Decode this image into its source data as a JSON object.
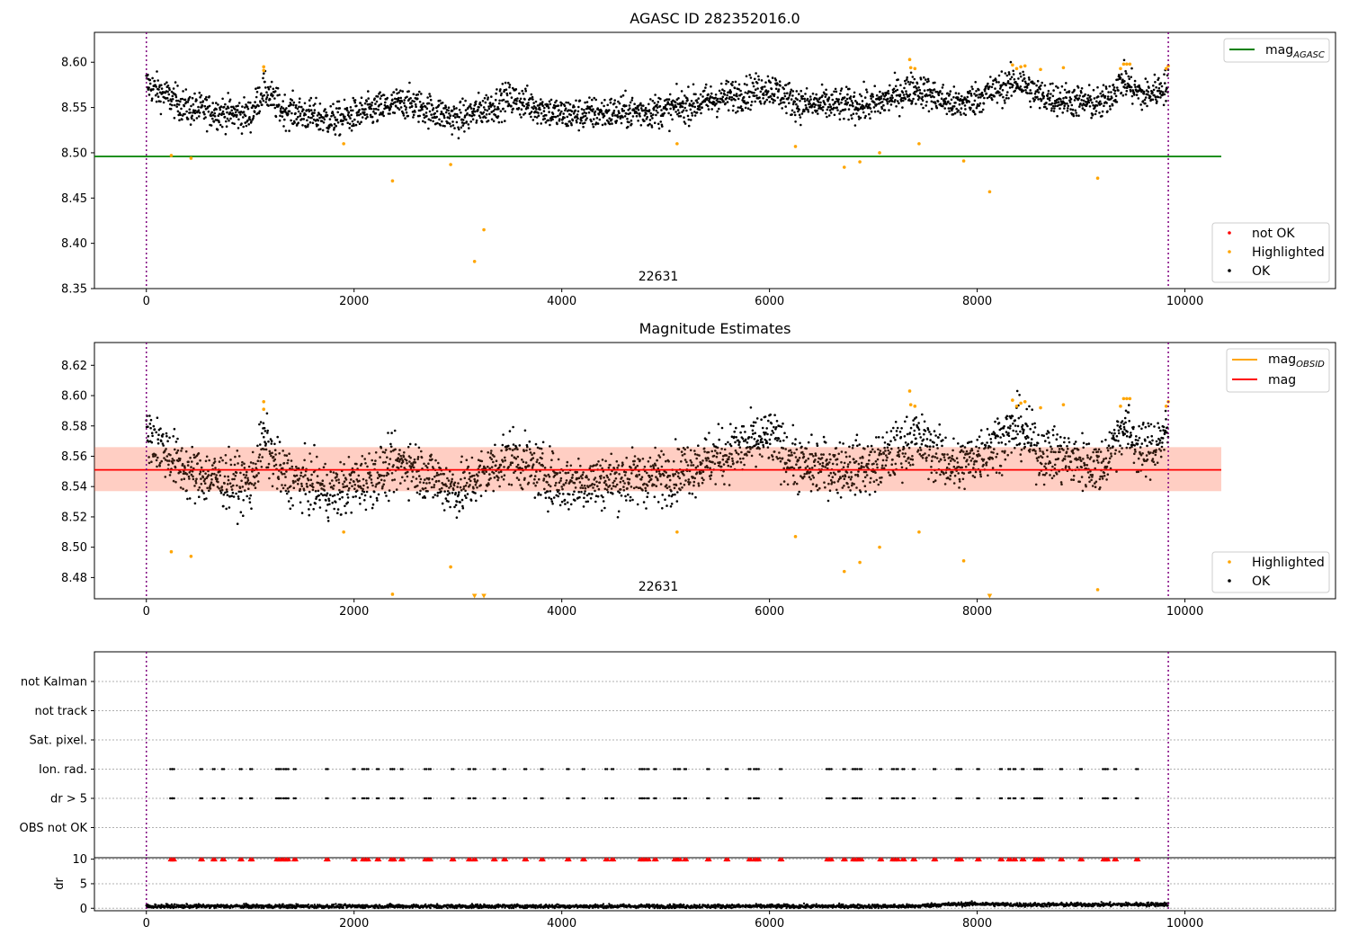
{
  "chart_data": [
    {
      "type": "scatter",
      "title": "AGASC ID 282352016.0",
      "xlabel": "",
      "ylabel": "",
      "xlim": [
        -500,
        11450
      ],
      "ylim": [
        8.35,
        8.633
      ],
      "xticks": [
        0,
        2000,
        4000,
        6000,
        8000,
        10000
      ],
      "yticks": [
        8.35,
        8.4,
        8.45,
        8.5,
        8.55,
        8.6
      ],
      "ytick_labels": [
        "8.35",
        "8.40",
        "8.45",
        "8.50",
        "8.55",
        "8.60"
      ],
      "vlines": [
        0,
        9840
      ],
      "annotation": {
        "x": 4950,
        "y": 8.35,
        "text": "22631"
      },
      "hlines": [
        {
          "name": "mag_AGASC",
          "y": 8.496,
          "x": [
            -500,
            10350
          ],
          "color": "#008000"
        }
      ],
      "legend_lines": [
        {
          "label": "mag",
          "sub": "AGASC",
          "color": "#008000"
        }
      ],
      "legend_points": [
        {
          "label": "not OK",
          "color": "#ff0000"
        },
        {
          "label": "Highlighted",
          "color": "#ffa500"
        },
        {
          "label": "OK",
          "color": "#000000"
        }
      ],
      "series": [
        {
          "name": "OK",
          "color": "#000000",
          "baseline": [
            [
              0,
              8.576
            ],
            [
              400,
              8.549
            ],
            [
              1000,
              8.541
            ],
            [
              1130,
              8.57
            ],
            [
              1300,
              8.548
            ],
            [
              1800,
              8.536
            ],
            [
              2500,
              8.556
            ],
            [
              3000,
              8.537
            ],
            [
              3500,
              8.56
            ],
            [
              4000,
              8.542
            ],
            [
              5000,
              8.547
            ],
            [
              6000,
              8.572
            ],
            [
              6300,
              8.553
            ],
            [
              7000,
              8.553
            ],
            [
              7400,
              8.572
            ],
            [
              7800,
              8.552
            ],
            [
              8400,
              8.579
            ],
            [
              8600,
              8.563
            ],
            [
              9200,
              8.553
            ],
            [
              9400,
              8.58
            ],
            [
              9600,
              8.562
            ],
            [
              9840,
              8.575
            ]
          ],
          "spread": 0.009
        },
        {
          "name": "Highlighted",
          "color": "#ffa500",
          "points": [
            [
              240,
              8.497
            ],
            [
              430,
              8.494
            ],
            [
              1130,
              8.591
            ],
            [
              1130,
              8.595
            ],
            [
              1900,
              8.51
            ],
            [
              2370,
              8.469
            ],
            [
              2930,
              8.487
            ],
            [
              3160,
              8.38
            ],
            [
              3250,
              8.415
            ],
            [
              5110,
              8.51
            ],
            [
              6250,
              8.507
            ],
            [
              6720,
              8.484
            ],
            [
              6870,
              8.49
            ],
            [
              7060,
              8.5
            ],
            [
              7350,
              8.603
            ],
            [
              7360,
              8.594
            ],
            [
              7400,
              8.593
            ],
            [
              7440,
              8.51
            ],
            [
              7870,
              8.491
            ],
            [
              8120,
              8.457
            ],
            [
              8340,
              8.597
            ],
            [
              8380,
              8.593
            ],
            [
              8420,
              8.595
            ],
            [
              8460,
              8.596
            ],
            [
              8610,
              8.592
            ],
            [
              8830,
              8.594
            ],
            [
              9160,
              8.472
            ],
            [
              9380,
              8.593
            ],
            [
              9410,
              8.598
            ],
            [
              9440,
              8.598
            ],
            [
              9470,
              8.598
            ],
            [
              9820,
              8.593
            ],
            [
              9840,
              8.596
            ]
          ]
        }
      ]
    },
    {
      "type": "scatter",
      "title": "Magnitude Estimates",
      "xlabel": "",
      "ylabel": "",
      "xlim": [
        -500,
        11450
      ],
      "ylim": [
        8.466,
        8.635
      ],
      "xticks": [
        0,
        2000,
        4000,
        6000,
        8000,
        10000
      ],
      "yticks": [
        8.48,
        8.5,
        8.52,
        8.54,
        8.56,
        8.58,
        8.6,
        8.62
      ],
      "ytick_labels": [
        "8.48",
        "8.50",
        "8.52",
        "8.54",
        "8.56",
        "8.58",
        "8.60",
        "8.62"
      ],
      "vlines": [
        0,
        9840
      ],
      "annotation": {
        "x": 4950,
        "y": 8.466,
        "text": "22631"
      },
      "band": {
        "y0": 8.537,
        "y1": 8.566,
        "x": [
          -500,
          10350
        ]
      },
      "mag_line": {
        "y": 8.551,
        "x": [
          -500,
          10350
        ],
        "color": "#ff0000"
      },
      "legend_lines": [
        {
          "label": "mag",
          "sub": "OBSID",
          "color": "#ffa500"
        },
        {
          "label": "mag",
          "sub": "",
          "color": "#ff0000"
        }
      ],
      "legend_points": [
        {
          "label": "Highlighted",
          "color": "#ffa500"
        },
        {
          "label": "OK",
          "color": "#000000"
        }
      ],
      "series": [
        {
          "name": "OK",
          "color": "#000000",
          "baseline": [
            [
              0,
              8.576
            ],
            [
              400,
              8.549
            ],
            [
              1000,
              8.541
            ],
            [
              1130,
              8.57
            ],
            [
              1300,
              8.548
            ],
            [
              1800,
              8.536
            ],
            [
              2500,
              8.556
            ],
            [
              3000,
              8.537
            ],
            [
              3500,
              8.56
            ],
            [
              4000,
              8.542
            ],
            [
              5000,
              8.547
            ],
            [
              6000,
              8.572
            ],
            [
              6300,
              8.553
            ],
            [
              7000,
              8.553
            ],
            [
              7400,
              8.572
            ],
            [
              7800,
              8.552
            ],
            [
              8400,
              8.579
            ],
            [
              8600,
              8.563
            ],
            [
              9200,
              8.553
            ],
            [
              9400,
              8.58
            ],
            [
              9600,
              8.562
            ],
            [
              9840,
              8.575
            ]
          ],
          "spread": 0.009
        },
        {
          "name": "Highlighted",
          "color": "#ffa500",
          "points": [
            [
              240,
              8.497
            ],
            [
              430,
              8.494
            ],
            [
              1130,
              8.591
            ],
            [
              1130,
              8.596
            ],
            [
              1900,
              8.51
            ],
            [
              2370,
              8.469
            ],
            [
              2930,
              8.487
            ],
            [
              5110,
              8.51
            ],
            [
              6250,
              8.507
            ],
            [
              6720,
              8.484
            ],
            [
              6870,
              8.49
            ],
            [
              7060,
              8.5
            ],
            [
              7350,
              8.603
            ],
            [
              7360,
              8.594
            ],
            [
              7400,
              8.593
            ],
            [
              7440,
              8.51
            ],
            [
              7870,
              8.491
            ],
            [
              8340,
              8.597
            ],
            [
              8380,
              8.593
            ],
            [
              8420,
              8.595
            ],
            [
              8460,
              8.596
            ],
            [
              8610,
              8.592
            ],
            [
              8830,
              8.594
            ],
            [
              9160,
              8.472
            ],
            [
              9380,
              8.593
            ],
            [
              9410,
              8.598
            ],
            [
              9440,
              8.598
            ],
            [
              9470,
              8.598
            ],
            [
              9820,
              8.593
            ],
            [
              9840,
              8.596
            ]
          ]
        },
        {
          "name": "Highlighted (below axis)",
          "color": "#ffa500",
          "marker": "triangle-down",
          "points": [
            [
              3160,
              8.4675
            ],
            [
              3250,
              8.4675
            ],
            [
              8120,
              8.4675
            ]
          ]
        }
      ]
    },
    {
      "type": "scatter",
      "title": "",
      "xlabel": "",
      "ylabel": "",
      "xlim": [
        -500,
        11450
      ],
      "categories": [
        "not Kalman",
        "not track",
        "Sat. pixel.",
        "Ion. rad.",
        "dr > 5",
        "OBS not OK"
      ],
      "vlines": [
        0,
        9840
      ],
      "flag_rows": [
        {
          "category": "Ion. rad.",
          "x": [
            230,
            250,
            520,
            640,
            730,
            900,
            1000,
            1250,
            1280,
            1320,
            1350,
            1420,
            1730,
            1990,
            2080,
            2120,
            2220,
            2350,
            2370,
            2450,
            2680,
            2720,
            2940,
            3100,
            3150,
            3340,
            3440,
            3640,
            3800,
            4050,
            4200,
            4420,
            4480,
            4750,
            4780,
            4820,
            4890,
            5080,
            5120,
            5180,
            5400,
            5580,
            5800,
            5850,
            5880,
            6100,
            6550,
            6580,
            6710,
            6800,
            6830,
            6870,
            7060,
            7180,
            7220,
            7280,
            7380,
            7580,
            7800,
            7830,
            8000,
            8220,
            8300,
            8350,
            8430,
            8550,
            8580,
            8610,
            8800,
            8990,
            9210,
            9240,
            9320,
            9530
          ]
        },
        {
          "category": "dr > 5",
          "x": [
            230,
            250,
            520,
            640,
            730,
            900,
            1000,
            1250,
            1280,
            1320,
            1350,
            1420,
            1730,
            1990,
            2080,
            2120,
            2220,
            2350,
            2370,
            2450,
            2680,
            2720,
            2940,
            3100,
            3150,
            3340,
            3440,
            3640,
            3800,
            4050,
            4200,
            4420,
            4480,
            4750,
            4780,
            4820,
            4890,
            5080,
            5120,
            5180,
            5400,
            5580,
            5800,
            5850,
            5880,
            6100,
            6550,
            6580,
            6710,
            6800,
            6830,
            6870,
            7060,
            7180,
            7220,
            7280,
            7380,
            7580,
            7800,
            7830,
            8000,
            8220,
            8300,
            8350,
            8430,
            8550,
            8580,
            8610,
            8800,
            8990,
            9210,
            9240,
            9320,
            9530
          ]
        }
      ]
    },
    {
      "type": "scatter",
      "title": "",
      "xlabel": "",
      "ylabel": "dr",
      "xlim": [
        -500,
        11450
      ],
      "ylim": [
        -0.5,
        10.3
      ],
      "xticks": [
        0,
        2000,
        4000,
        6000,
        8000,
        10000
      ],
      "yticks": [
        0,
        5,
        10
      ],
      "ytick_labels": [
        "0",
        "5",
        "10"
      ],
      "vlines": [
        0,
        9840
      ],
      "series": [
        {
          "name": "dr",
          "color": "#000000",
          "baseline": [
            [
              0,
              0.4
            ],
            [
              7400,
              0.4
            ],
            [
              7600,
              0.7
            ],
            [
              8000,
              0.9
            ],
            [
              8400,
              0.7
            ],
            [
              9840,
              0.8
            ]
          ],
          "spread": 0.2
        },
        {
          "name": "dr > 10 (clipped)",
          "color": "#ff0000",
          "marker": "triangle-up",
          "y": 9.9,
          "x": [
            230,
            250,
            520,
            640,
            730,
            900,
            1000,
            1250,
            1280,
            1320,
            1350,
            1420,
            1730,
            1990,
            2080,
            2120,
            2220,
            2350,
            2370,
            2450,
            2680,
            2720,
            2940,
            3100,
            3150,
            3340,
            3440,
            3640,
            3800,
            4050,
            4200,
            4420,
            4480,
            4750,
            4780,
            4820,
            4890,
            5080,
            5120,
            5180,
            5400,
            5580,
            5800,
            5850,
            5880,
            6100,
            6550,
            6580,
            6710,
            6800,
            6830,
            6870,
            7060,
            7180,
            7220,
            7280,
            7380,
            7580,
            7800,
            7830,
            8000,
            8220,
            8300,
            8350,
            8430,
            8550,
            8580,
            8610,
            8800,
            8990,
            9210,
            9240,
            9320,
            9530
          ]
        }
      ]
    }
  ]
}
